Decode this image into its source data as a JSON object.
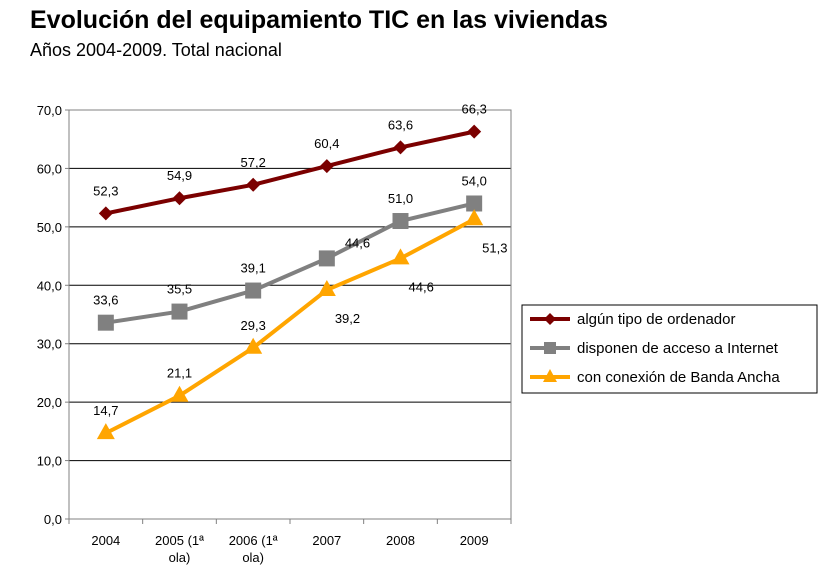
{
  "header": {
    "title": "Evolución del equipamiento TIC en las viviendas",
    "subtitle": "Años 2004-2009. Total nacional"
  },
  "chart_data": {
    "type": "line",
    "categories": [
      [
        "2004"
      ],
      [
        "2005 (1ª",
        "ola)"
      ],
      [
        "2006 (1ª",
        "ola)"
      ],
      [
        "2007"
      ],
      [
        "2008"
      ],
      [
        "2009"
      ]
    ],
    "ylim": [
      0,
      70
    ],
    "yticks": [
      "0,0",
      "10,0",
      "20,0",
      "30,0",
      "40,0",
      "50,0",
      "60,0",
      "70,0"
    ],
    "ytick_values": [
      0,
      10,
      20,
      30,
      40,
      50,
      60,
      70
    ],
    "grid": true,
    "legend_position": "right",
    "series": [
      {
        "name": "algún tipo de ordenador",
        "marker": "diamond",
        "color": "#7b0000",
        "values": [
          52.3,
          54.9,
          57.2,
          60.4,
          63.6,
          66.3
        ],
        "labels": [
          "52,3",
          "54,9",
          "57,2",
          "60,4",
          "63,6",
          "66,3"
        ],
        "label_pos": [
          "above",
          "above",
          "above",
          "above",
          "above",
          "above"
        ]
      },
      {
        "name": "disponen de acceso a Internet",
        "marker": "square",
        "color": "#808080",
        "values": [
          33.6,
          35.5,
          39.1,
          44.6,
          51.0,
          54.0
        ],
        "labels": [
          "33,6",
          "35,5",
          "39,1",
          "44,6",
          "51,0",
          "54,0"
        ],
        "label_pos": [
          "above",
          "above",
          "above",
          "aboveright",
          "above",
          "above"
        ]
      },
      {
        "name": "con conexión de Banda Ancha",
        "marker": "triangle",
        "color": "#ffa500",
        "values": [
          14.7,
          21.1,
          29.3,
          39.2,
          44.6,
          51.3
        ],
        "labels": [
          "14,7",
          "21,1",
          "29,3",
          "39,2",
          "44,6",
          "51,3"
        ],
        "label_pos": [
          "above",
          "above",
          "above",
          "belowright",
          "belowright",
          "belowright"
        ]
      }
    ]
  }
}
